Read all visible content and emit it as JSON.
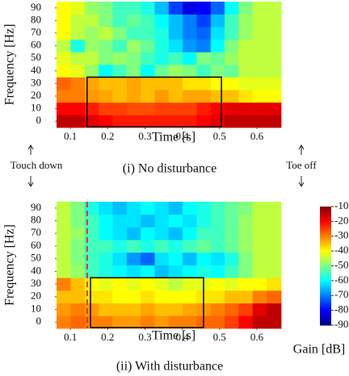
{
  "chart_data": [
    {
      "type": "heatmap",
      "title": "(i) No disturbance",
      "xlabel": "Time [s]",
      "ylabel": "Frequency [Hz]",
      "x": [
        0.082,
        0.12,
        0.157,
        0.195,
        0.232,
        0.27,
        0.307,
        0.345,
        0.382,
        0.42,
        0.457,
        0.495,
        0.532,
        0.57,
        0.607,
        0.645
      ],
      "y": [
        0,
        10,
        20,
        30,
        40,
        50,
        60,
        70,
        80,
        90
      ],
      "z": [
        [
          -15,
          -15,
          -18,
          -20,
          -22,
          -22,
          -22,
          -22,
          -22,
          -22,
          -20,
          -18,
          -15,
          -15,
          -15,
          -15
        ],
        [
          -20,
          -20,
          -22,
          -25,
          -25,
          -26,
          -26,
          -25,
          -25,
          -25,
          -22,
          -20,
          -18,
          -18,
          -18,
          -18
        ],
        [
          -30,
          -30,
          -32,
          -33,
          -35,
          -33,
          -35,
          -32,
          -35,
          -33,
          -33,
          -35,
          -35,
          -38,
          -40,
          -40
        ],
        [
          -28,
          -30,
          -33,
          -35,
          -35,
          -33,
          -35,
          -35,
          -35,
          -38,
          -38,
          -40,
          -40,
          -42,
          -42,
          -42
        ],
        [
          -40,
          -42,
          -48,
          -60,
          -55,
          -50,
          -60,
          -52,
          -48,
          -50,
          -55,
          -50,
          -52,
          -45,
          -45,
          -45
        ],
        [
          -42,
          -45,
          -45,
          -50,
          -48,
          -50,
          -55,
          -58,
          -55,
          -60,
          -50,
          -52,
          -48,
          -45,
          -45,
          -45
        ],
        [
          -45,
          -58,
          -48,
          -50,
          -55,
          -48,
          -52,
          -58,
          -62,
          -68,
          -70,
          -60,
          -50,
          -45,
          -45,
          -45
        ],
        [
          -40,
          -45,
          -48,
          -45,
          -50,
          -55,
          -55,
          -58,
          -65,
          -70,
          -72,
          -62,
          -55,
          -48,
          -45,
          -45
        ],
        [
          -40,
          -45,
          -45,
          -50,
          -55,
          -52,
          -55,
          -60,
          -65,
          -70,
          -75,
          -65,
          -55,
          -48,
          -45,
          -45
        ],
        [
          -40,
          -42,
          -48,
          -50,
          -55,
          -55,
          -58,
          -65,
          -75,
          -82,
          -80,
          -72,
          -60,
          -50,
          -45,
          -45
        ]
      ],
      "xlim": [
        0.063,
        0.665
      ],
      "ylim": [
        -5,
        95
      ],
      "xticks": [
        0.1,
        0.2,
        0.3,
        0.4,
        0.5,
        0.6
      ],
      "yticks": [
        0,
        10,
        20,
        30,
        40,
        50,
        60,
        70,
        80,
        90
      ],
      "highlight": {
        "x": [
          0.145,
          0.505
        ],
        "y": [
          -5,
          35
        ],
        "color": "#000000"
      },
      "annotations": [
        "Touch down",
        "Toe off"
      ]
    },
    {
      "type": "heatmap",
      "title": "(ii) With disturbance",
      "xlabel": "Time [s]",
      "ylabel": "Frequency [Hz]",
      "x": [
        0.082,
        0.12,
        0.157,
        0.195,
        0.232,
        0.27,
        0.307,
        0.345,
        0.382,
        0.42,
        0.457,
        0.495,
        0.532,
        0.57,
        0.607,
        0.645
      ],
      "y": [
        0,
        10,
        20,
        30,
        40,
        50,
        60,
        70,
        80,
        90
      ],
      "z": [
        [
          -30,
          -28,
          -30,
          -30,
          -32,
          -32,
          -30,
          -32,
          -30,
          -30,
          -28,
          -28,
          -25,
          -20,
          -15,
          -15
        ],
        [
          -32,
          -30,
          -32,
          -35,
          -35,
          -35,
          -33,
          -35,
          -35,
          -33,
          -32,
          -30,
          -28,
          -25,
          -18,
          -15
        ],
        [
          -35,
          -35,
          -38,
          -38,
          -40,
          -40,
          -38,
          -40,
          -40,
          -40,
          -38,
          -38,
          -35,
          -35,
          -30,
          -28
        ],
        [
          -30,
          -35,
          -40,
          -42,
          -40,
          -42,
          -40,
          -42,
          -45,
          -42,
          -42,
          -40,
          -42,
          -40,
          -40,
          -38
        ],
        [
          -45,
          -48,
          -55,
          -58,
          -60,
          -62,
          -60,
          -65,
          -62,
          -60,
          -58,
          -60,
          -55,
          -50,
          -45,
          -45
        ],
        [
          -45,
          -50,
          -55,
          -58,
          -62,
          -68,
          -72,
          -62,
          -60,
          -65,
          -60,
          -62,
          -58,
          -50,
          -45,
          -45
        ],
        [
          -45,
          -50,
          -55,
          -55,
          -58,
          -55,
          -58,
          -55,
          -58,
          -55,
          -52,
          -55,
          -52,
          -48,
          -45,
          -45
        ],
        [
          -45,
          -48,
          -55,
          -60,
          -62,
          -65,
          -60,
          -62,
          -65,
          -60,
          -55,
          -55,
          -52,
          -48,
          -45,
          -45
        ],
        [
          -45,
          -50,
          -55,
          -60,
          -62,
          -62,
          -65,
          -62,
          -60,
          -62,
          -58,
          -55,
          -52,
          -48,
          -45,
          -45
        ],
        [
          -45,
          -50,
          -58,
          -62,
          -65,
          -62,
          -60,
          -62,
          -65,
          -60,
          -58,
          -55,
          -52,
          -50,
          -45,
          -45
        ]
      ],
      "xlim": [
        0.063,
        0.665
      ],
      "ylim": [
        -5,
        95
      ],
      "xticks": [
        0.1,
        0.2,
        0.3,
        0.4,
        0.5,
        0.6
      ],
      "yticks": [
        0,
        10,
        20,
        30,
        40,
        50,
        60,
        70,
        80,
        90
      ],
      "highlight": {
        "x": [
          0.154,
          0.457
        ],
        "y": [
          -5,
          35
        ],
        "color": "#000000"
      },
      "marker_x": {
        "value": 0.145,
        "color": "#e0302a"
      },
      "colorbar": {
        "label": "Gain [dB]",
        "lim": [
          -90,
          -10
        ],
        "ticks": [
          -10,
          -20,
          -30,
          -40,
          -50,
          -60,
          -70,
          -80,
          -90
        ]
      }
    }
  ]
}
